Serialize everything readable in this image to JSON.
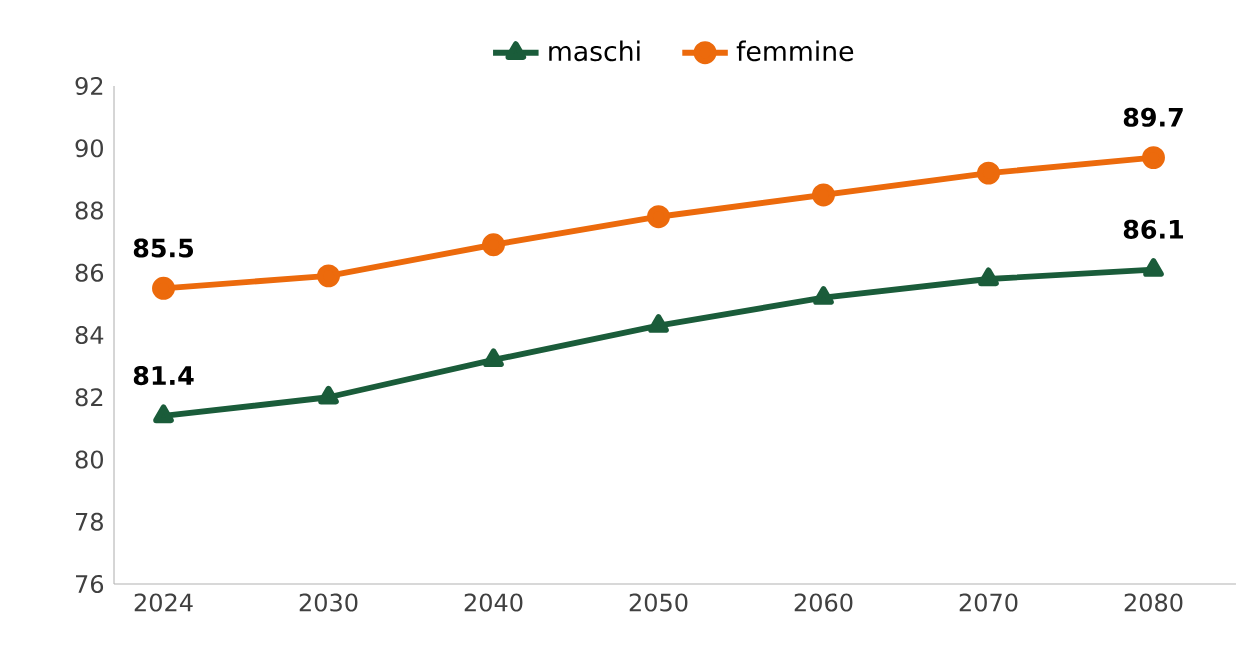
{
  "chart_data": {
    "type": "line",
    "categories": [
      "2024",
      "2030",
      "2040",
      "2050",
      "2060",
      "2070",
      "2080"
    ],
    "series": [
      {
        "name": "maschi",
        "color": "#1a5c3a",
        "marker": "triangle",
        "values": [
          81.4,
          82.0,
          83.2,
          84.3,
          85.2,
          85.8,
          86.1
        ],
        "value_labels": [
          "81.4",
          null,
          null,
          null,
          null,
          null,
          "86.1"
        ]
      },
      {
        "name": "femmine",
        "color": "#ec6a0c",
        "marker": "circle",
        "values": [
          85.5,
          85.9,
          86.9,
          87.8,
          88.5,
          89.2,
          89.7
        ],
        "value_labels": [
          "85.5",
          null,
          null,
          null,
          null,
          null,
          "89.7"
        ]
      }
    ],
    "ylim": [
      76,
      92
    ],
    "yticks": [
      76,
      78,
      80,
      82,
      84,
      86,
      88,
      90,
      92
    ],
    "grid": false,
    "legend": "top",
    "line_style": "solid"
  }
}
